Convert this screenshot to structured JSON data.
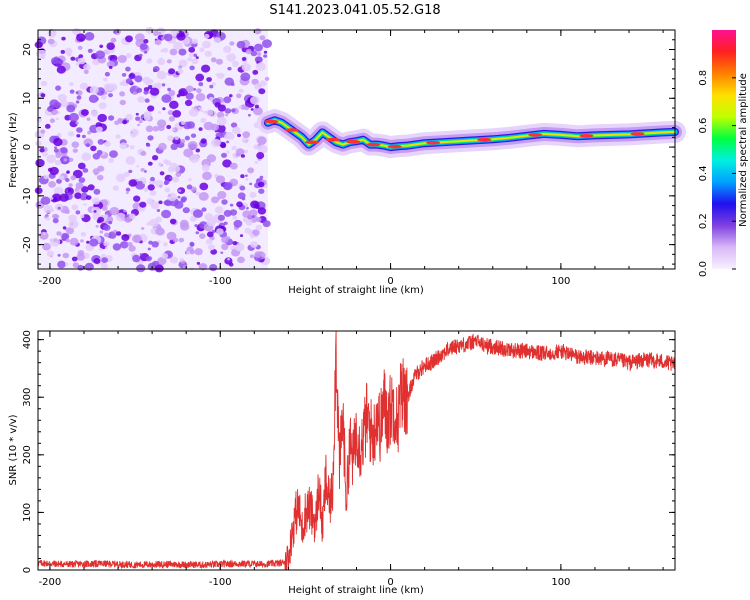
{
  "title": "S141.2023.041.05.52.G18",
  "chart_data": [
    {
      "type": "heatmap",
      "xlabel": "Height of straight line (km)",
      "ylabel": "Frequency (Hz)",
      "xlim": [
        -207,
        167
      ],
      "ylim": [
        -25,
        24
      ],
      "xticks": [
        -200,
        -100,
        0,
        100
      ],
      "yticks": [
        -20,
        -10,
        0,
        10,
        20
      ],
      "colorbar": {
        "label": "Normalized spectral amplitude",
        "range": [
          0,
          1
        ],
        "ticks": [
          0.0,
          0.2,
          0.4,
          0.6,
          0.8
        ],
        "colormap": [
          "#f8f0ff",
          "#d8b8f8",
          "#8040e0",
          "#2010f0",
          "#00a0ff",
          "#00f0e0",
          "#00ff40",
          "#c0ff00",
          "#ffe000",
          "#ff8000",
          "#ff2020",
          "#ff1090"
        ]
      },
      "noise_region": {
        "x_range": [
          -207,
          -72
        ],
        "freq_range": [
          -25,
          24
        ]
      },
      "doppler_ridge": [
        [
          -72,
          5
        ],
        [
          -68,
          5.5
        ],
        [
          -64,
          5
        ],
        [
          -60,
          4
        ],
        [
          -56,
          3
        ],
        [
          -52,
          2
        ],
        [
          -48,
          0.5
        ],
        [
          -44,
          1.5
        ],
        [
          -40,
          3
        ],
        [
          -36,
          2
        ],
        [
          -32,
          1
        ],
        [
          -28,
          0.5
        ],
        [
          -24,
          1
        ],
        [
          -20,
          1.2
        ],
        [
          -16,
          1.5
        ],
        [
          -12,
          0.5
        ],
        [
          -8,
          0.5
        ],
        [
          -4,
          0.3
        ],
        [
          0,
          0
        ],
        [
          5,
          0.2
        ],
        [
          10,
          0.3
        ],
        [
          20,
          0.8
        ],
        [
          30,
          1
        ],
        [
          40,
          1.2
        ],
        [
          50,
          1.4
        ],
        [
          60,
          1.6
        ],
        [
          70,
          1.9
        ],
        [
          80,
          2.3
        ],
        [
          90,
          2.7
        ],
        [
          100,
          2.5
        ],
        [
          110,
          2.2
        ],
        [
          120,
          2.4
        ],
        [
          130,
          2.5
        ],
        [
          140,
          2.6
        ],
        [
          150,
          2.8
        ],
        [
          160,
          3
        ],
        [
          167,
          3.1
        ]
      ]
    },
    {
      "type": "line",
      "xlabel": "Height of straight line (km)",
      "ylabel": "SNR (10 * v/v)",
      "xlim": [
        -207,
        167
      ],
      "ylim": [
        0,
        415
      ],
      "xticks": [
        -200,
        -100,
        0,
        100
      ],
      "yticks": [
        0,
        100,
        200,
        300,
        400
      ],
      "color": "#e03030",
      "series": [
        {
          "x": [
            -207,
            -190,
            -170,
            -150,
            -130,
            -110,
            -90,
            -75,
            -64,
            -60,
            -58,
            -56,
            -54,
            -52,
            -50,
            -48,
            -46,
            -44,
            -42,
            -40,
            -38,
            -36,
            -34,
            -32,
            -30,
            -28,
            -26,
            -24,
            -22,
            -20,
            -18,
            -16,
            -14,
            -12,
            -10,
            -8,
            -6,
            -4,
            -2,
            0,
            2,
            4,
            6,
            8,
            10,
            12,
            15,
            20,
            25,
            30,
            35,
            40,
            45,
            50,
            55,
            60,
            70,
            80,
            90,
            100,
            110,
            120,
            130,
            140,
            150,
            160,
            167
          ],
          "y": [
            12,
            10,
            11,
            9,
            10,
            9,
            11,
            10,
            12,
            20,
            60,
            95,
            110,
            70,
            100,
            110,
            95,
            80,
            150,
            70,
            160,
            110,
            140,
            395,
            180,
            270,
            120,
            220,
            190,
            250,
            210,
            230,
            265,
            245,
            230,
            275,
            245,
            295,
            260,
            280,
            290,
            255,
            300,
            310,
            290,
            320,
            340,
            355,
            362,
            375,
            385,
            390,
            392,
            398,
            390,
            388,
            382,
            380,
            375,
            380,
            370,
            368,
            366,
            360,
            365,
            362,
            355
          ]
        }
      ]
    }
  ]
}
